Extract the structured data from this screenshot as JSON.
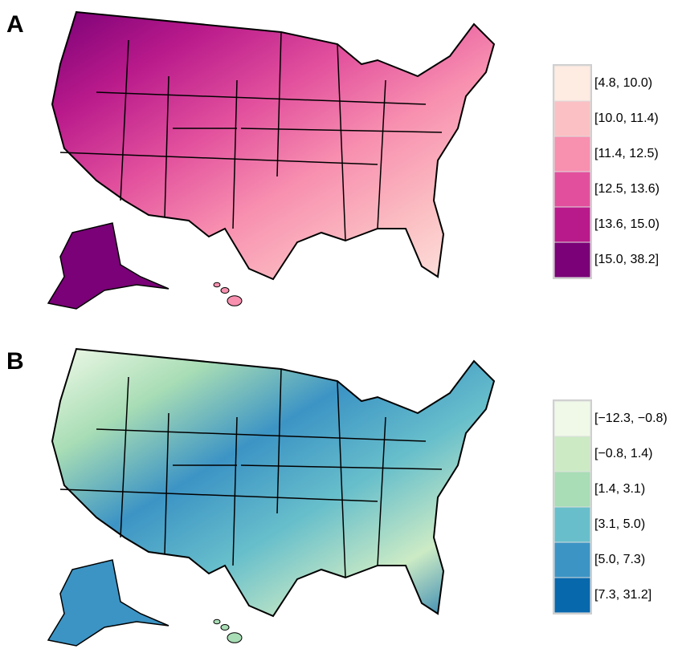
{
  "panels": [
    {
      "label": "A",
      "legend": [
        {
          "label": "[4.8, 10.0)",
          "color": "#feebe2"
        },
        {
          "label": "[10.0, 11.4)",
          "color": "#fbc0c3"
        },
        {
          "label": "[11.4, 12.5)",
          "color": "#f890b0"
        },
        {
          "label": "[12.5, 13.6)",
          "color": "#e2509d"
        },
        {
          "label": "[13.6, 15.0)",
          "color": "#b91a8b"
        },
        {
          "label": "[15.0, 38.2]",
          "color": "#7a0177"
        }
      ]
    },
    {
      "label": "B",
      "legend": [
        {
          "label": "[−12.3, −0.8)",
          "color": "#f0f9e8"
        },
        {
          "label": "[−0.8, 1.4)",
          "color": "#ccebc5"
        },
        {
          "label": "[1.4, 3.1)",
          "color": "#a8ddb5"
        },
        {
          "label": "[3.1, 5.0)",
          "color": "#68bfcb"
        },
        {
          "label": "[5.0, 7.3)",
          "color": "#3c94c5"
        },
        {
          "label": "[7.3, 31.2]",
          "color": "#0868ac"
        }
      ]
    }
  ]
}
